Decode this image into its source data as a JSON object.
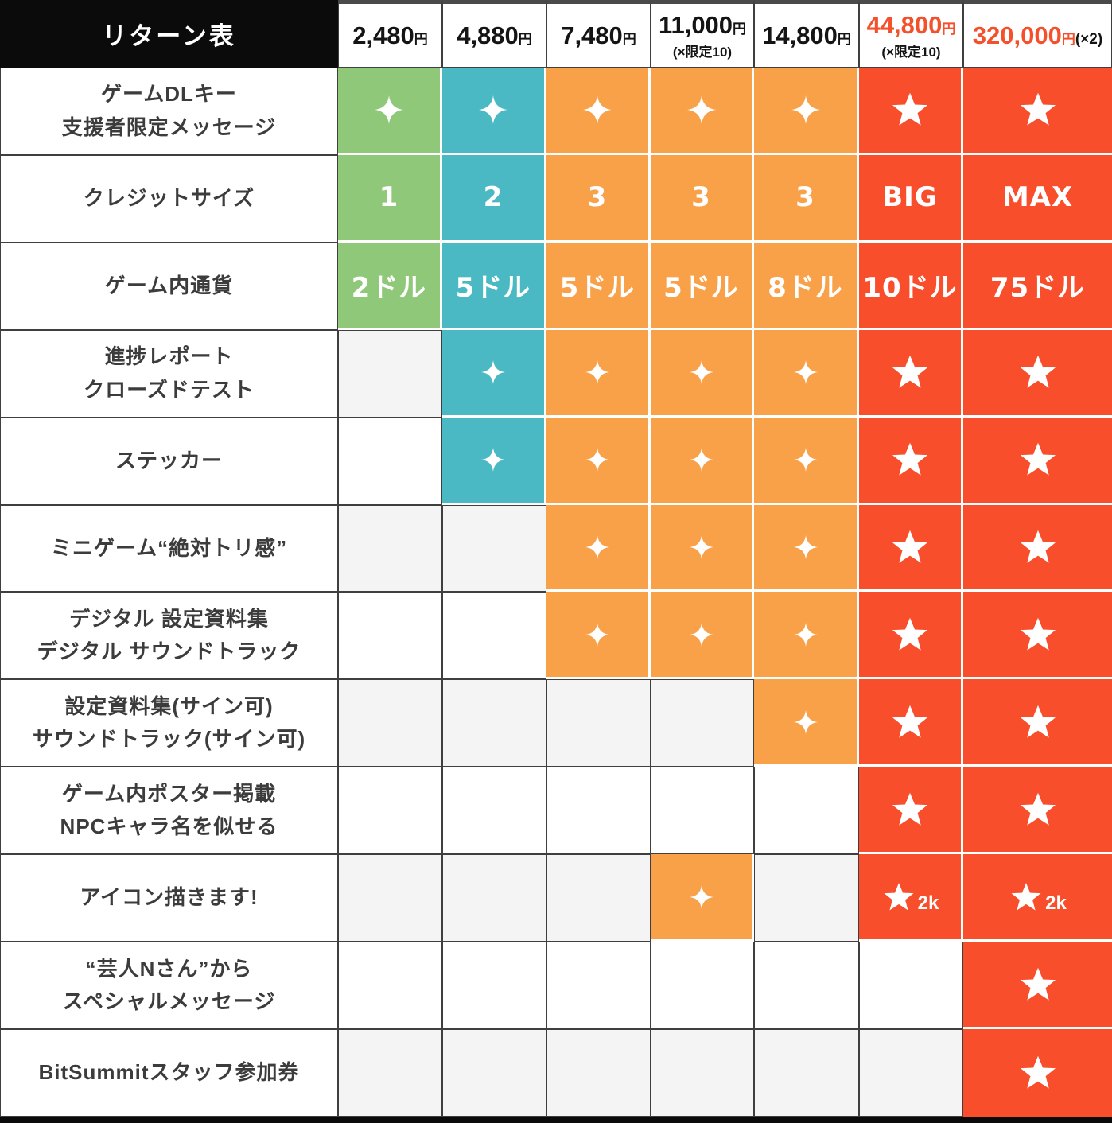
{
  "table": {
    "corner_label": "リターン表",
    "columns": [
      {
        "price": "2,480",
        "unit": "円",
        "price_color": "black"
      },
      {
        "price": "4,880",
        "unit": "円",
        "price_color": "black"
      },
      {
        "price": "7,480",
        "unit": "円",
        "price_color": "black"
      },
      {
        "price": "11,000",
        "unit": "円",
        "note": "(×限定10)",
        "price_color": "black"
      },
      {
        "price": "14,800",
        "unit": "円",
        "price_color": "black"
      },
      {
        "price": "44,800",
        "unit": "円",
        "note": "(×限定10)",
        "price_color": "red"
      },
      {
        "price": "320,000",
        "unit": "円",
        "suffix": "(×2)",
        "price_color": "red"
      }
    ],
    "rows": [
      {
        "label": [
          "ゲームDLキー",
          "支援者限定メッセージ"
        ],
        "cells": [
          {
            "bg": "green",
            "icon": "sparkle"
          },
          {
            "bg": "teal",
            "icon": "sparkle"
          },
          {
            "bg": "orange",
            "icon": "sparkle"
          },
          {
            "bg": "orange",
            "icon": "sparkle"
          },
          {
            "bg": "orange",
            "icon": "sparkle"
          },
          {
            "bg": "red",
            "icon": "star"
          },
          {
            "bg": "red",
            "icon": "star"
          }
        ]
      },
      {
        "label": [
          "クレジットサイズ"
        ],
        "cells": [
          {
            "bg": "green",
            "text": "1"
          },
          {
            "bg": "teal",
            "text": "2"
          },
          {
            "bg": "orange",
            "text": "3"
          },
          {
            "bg": "orange",
            "text": "3"
          },
          {
            "bg": "orange",
            "text": "3"
          },
          {
            "bg": "red",
            "text": "BIG"
          },
          {
            "bg": "red",
            "text": "MAX"
          }
        ]
      },
      {
        "label": [
          "ゲーム内通貨"
        ],
        "cells": [
          {
            "bg": "green",
            "text": "2ドル"
          },
          {
            "bg": "teal",
            "text": "5ドル"
          },
          {
            "bg": "orange",
            "text": "5ドル"
          },
          {
            "bg": "orange",
            "text": "5ドル"
          },
          {
            "bg": "orange",
            "text": "8ドル"
          },
          {
            "bg": "red",
            "text": "10ドル"
          },
          {
            "bg": "red",
            "text": "75ドル"
          }
        ]
      },
      {
        "label": [
          "進捗レポート",
          "クローズドテスト"
        ],
        "cells": [
          {
            "bg": "gray"
          },
          {
            "bg": "teal",
            "icon": "sparkle"
          },
          {
            "bg": "orange",
            "icon": "sparkle"
          },
          {
            "bg": "orange",
            "icon": "sparkle"
          },
          {
            "bg": "orange",
            "icon": "sparkle"
          },
          {
            "bg": "red",
            "icon": "star"
          },
          {
            "bg": "red",
            "icon": "star"
          }
        ]
      },
      {
        "label": [
          "ステッカー"
        ],
        "cells": [
          {
            "bg": "white"
          },
          {
            "bg": "teal",
            "icon": "sparkle"
          },
          {
            "bg": "orange",
            "icon": "sparkle"
          },
          {
            "bg": "orange",
            "icon": "sparkle"
          },
          {
            "bg": "orange",
            "icon": "sparkle"
          },
          {
            "bg": "red",
            "icon": "star"
          },
          {
            "bg": "red",
            "icon": "star"
          }
        ]
      },
      {
        "label": [
          "ミニゲーム“絶対トリ感”"
        ],
        "cells": [
          {
            "bg": "gray"
          },
          {
            "bg": "gray"
          },
          {
            "bg": "orange",
            "icon": "sparkle"
          },
          {
            "bg": "orange",
            "icon": "sparkle"
          },
          {
            "bg": "orange",
            "icon": "sparkle"
          },
          {
            "bg": "red",
            "icon": "star"
          },
          {
            "bg": "red",
            "icon": "star"
          }
        ]
      },
      {
        "label": [
          "デジタル 設定資料集",
          "デジタル サウンドトラック"
        ],
        "cells": [
          {
            "bg": "white"
          },
          {
            "bg": "white"
          },
          {
            "bg": "orange",
            "icon": "sparkle"
          },
          {
            "bg": "orange",
            "icon": "sparkle"
          },
          {
            "bg": "orange",
            "icon": "sparkle"
          },
          {
            "bg": "red",
            "icon": "star"
          },
          {
            "bg": "red",
            "icon": "star"
          }
        ]
      },
      {
        "label": [
          "設定資料集(サイン可)",
          "サウンドトラック(サイン可)"
        ],
        "cells": [
          {
            "bg": "gray"
          },
          {
            "bg": "gray"
          },
          {
            "bg": "gray"
          },
          {
            "bg": "gray"
          },
          {
            "bg": "orange",
            "icon": "sparkle"
          },
          {
            "bg": "red",
            "icon": "star"
          },
          {
            "bg": "red",
            "icon": "star"
          }
        ]
      },
      {
        "label": [
          "ゲーム内ポスター掲載",
          "NPCキャラ名を似せる"
        ],
        "cells": [
          {
            "bg": "white"
          },
          {
            "bg": "white"
          },
          {
            "bg": "white"
          },
          {
            "bg": "white"
          },
          {
            "bg": "white"
          },
          {
            "bg": "red",
            "icon": "star"
          },
          {
            "bg": "red",
            "icon": "star"
          }
        ]
      },
      {
        "label": [
          "アイコン描きます!"
        ],
        "cells": [
          {
            "bg": "gray"
          },
          {
            "bg": "gray"
          },
          {
            "bg": "gray"
          },
          {
            "bg": "orange",
            "icon": "sparkle"
          },
          {
            "bg": "gray"
          },
          {
            "bg": "red",
            "icon": "star",
            "badge": "2k"
          },
          {
            "bg": "red",
            "icon": "star",
            "badge": "2k"
          }
        ]
      },
      {
        "label": [
          "“芸人Nさん”から",
          "スペシャルメッセージ"
        ],
        "cells": [
          {
            "bg": "white"
          },
          {
            "bg": "white"
          },
          {
            "bg": "white"
          },
          {
            "bg": "white"
          },
          {
            "bg": "white"
          },
          {
            "bg": "white"
          },
          {
            "bg": "red",
            "icon": "star"
          }
        ]
      },
      {
        "label": [
          "BitSummitスタッフ参加券"
        ],
        "cells": [
          {
            "bg": "gray"
          },
          {
            "bg": "gray"
          },
          {
            "bg": "gray"
          },
          {
            "bg": "gray"
          },
          {
            "bg": "gray"
          },
          {
            "bg": "gray"
          },
          {
            "bg": "red",
            "icon": "star"
          }
        ]
      }
    ]
  },
  "colors": {
    "green": "#8FC879",
    "teal": "#4BB9C4",
    "orange": "#F9A149",
    "red": "#F84E2B",
    "red_text": "#F4502C",
    "empty_gray": "#F4F4F4",
    "empty_white": "#FFFFFF",
    "border_dark": "#3F3F3F",
    "header_black": "#0B0B0B"
  },
  "icons": {
    "sparkle": "✦",
    "star": "★"
  },
  "chart_data": {
    "type": "table",
    "title": "リターン表",
    "columns": [
      "2,480円",
      "4,880円",
      "7,480円",
      "11,000円 (×限定10)",
      "14,800円",
      "44,800円 (×限定10)",
      "320,000円 (×2)"
    ],
    "row_labels": [
      "ゲームDLキー 支援者限定メッセージ",
      "クレジットサイズ",
      "ゲーム内通貨",
      "進捗レポート クローズドテスト",
      "ステッカー",
      "ミニゲーム“絶対トリ感”",
      "デジタル 設定資料集 / デジタル サウンドトラック",
      "設定資料集(サイン可) / サウンドトラック(サイン可)",
      "ゲーム内ポスター掲載 / NPCキャラ名を似せる",
      "アイコン描きます!",
      "“芸人Nさん”から スペシャルメッセージ",
      "BitSummitスタッフ参加券"
    ],
    "matrix": [
      [
        "✦",
        "✦",
        "✦",
        "✦",
        "✦",
        "★",
        "★"
      ],
      [
        "1",
        "2",
        "3",
        "3",
        "3",
        "BIG",
        "MAX"
      ],
      [
        "2ドル",
        "5ドル",
        "5ドル",
        "5ドル",
        "8ドル",
        "10ドル",
        "75ドル"
      ],
      [
        "",
        "✦",
        "✦",
        "✦",
        "✦",
        "★",
        "★"
      ],
      [
        "",
        "✦",
        "✦",
        "✦",
        "✦",
        "★",
        "★"
      ],
      [
        "",
        "",
        "✦",
        "✦",
        "✦",
        "★",
        "★"
      ],
      [
        "",
        "",
        "✦",
        "✦",
        "✦",
        "★",
        "★"
      ],
      [
        "",
        "",
        "",
        "",
        "✦",
        "★",
        "★"
      ],
      [
        "",
        "",
        "",
        "",
        "",
        "★",
        "★"
      ],
      [
        "",
        "",
        "",
        "✦",
        "",
        "★2k",
        "★2k"
      ],
      [
        "",
        "",
        "",
        "",
        "",
        "",
        "★"
      ],
      [
        "",
        "",
        "",
        "",
        "",
        "",
        "★"
      ]
    ]
  }
}
